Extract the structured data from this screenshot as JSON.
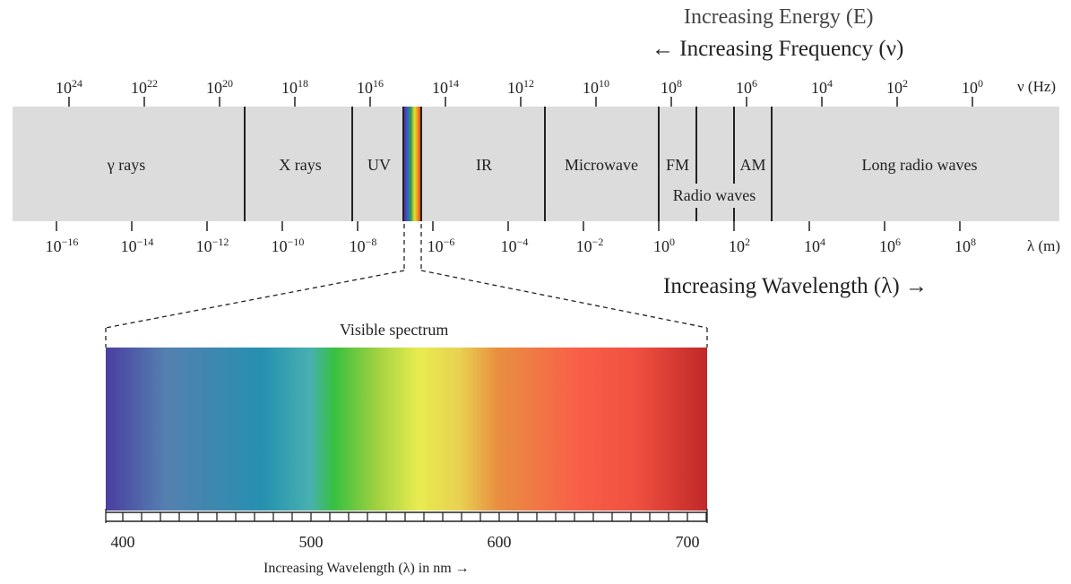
{
  "headings": {
    "energy": "Increasing Energy (E)",
    "frequency": "← Increasing Frequency (ν)",
    "wavelength": "Increasing Wavelength (λ) →",
    "visible_spectrum": "Visible spectrum",
    "nm_axis": "Increasing Wavelength (λ) in nm →"
  },
  "units": {
    "frequency": "ν (Hz)",
    "wavelength": "λ (m)"
  },
  "frequency_ticks": [
    {
      "base": "10",
      "exp": "24"
    },
    {
      "base": "10",
      "exp": "22"
    },
    {
      "base": "10",
      "exp": "20"
    },
    {
      "base": "10",
      "exp": "18"
    },
    {
      "base": "10",
      "exp": "16"
    },
    {
      "base": "10",
      "exp": "14"
    },
    {
      "base": "10",
      "exp": "12"
    },
    {
      "base": "10",
      "exp": "10"
    },
    {
      "base": "10",
      "exp": "8"
    },
    {
      "base": "10",
      "exp": "6"
    },
    {
      "base": "10",
      "exp": "4"
    },
    {
      "base": "10",
      "exp": "2"
    },
    {
      "base": "10",
      "exp": "0"
    }
  ],
  "wavelength_ticks": [
    {
      "base": "10",
      "exp": "−16"
    },
    {
      "base": "10",
      "exp": "−14"
    },
    {
      "base": "10",
      "exp": "−12"
    },
    {
      "base": "10",
      "exp": "−10"
    },
    {
      "base": "10",
      "exp": "−8"
    },
    {
      "base": "10",
      "exp": "−6"
    },
    {
      "base": "10",
      "exp": "−4"
    },
    {
      "base": "10",
      "exp": "−2"
    },
    {
      "base": "10",
      "exp": "0"
    },
    {
      "base": "10",
      "exp": "2"
    },
    {
      "base": "10",
      "exp": "4"
    },
    {
      "base": "10",
      "exp": "6"
    },
    {
      "base": "10",
      "exp": "8"
    }
  ],
  "regions": [
    {
      "id": "gamma",
      "label": "γ rays"
    },
    {
      "id": "xray",
      "label": "X rays"
    },
    {
      "id": "uv",
      "label": "UV"
    },
    {
      "id": "ir",
      "label": "IR"
    },
    {
      "id": "microwave",
      "label": "Microwave"
    },
    {
      "id": "fm",
      "label": "FM"
    },
    {
      "id": "radio",
      "label": "Radio waves"
    },
    {
      "id": "am",
      "label": "AM"
    },
    {
      "id": "long-radio",
      "label": "Long radio waves"
    }
  ],
  "nm_ticks": [
    "400",
    "500",
    "600",
    "700"
  ],
  "colors": {
    "band_fill": "#dcdcdc",
    "rainbow": [
      "#5a2ea0",
      "#2f62c8",
      "#2ea04c",
      "#e8e030",
      "#f09020",
      "#e02a1e"
    ],
    "visible_gradient": [
      "#4a3ea0",
      "#5580b0",
      "#2590b0",
      "#48b0b0",
      "#38c040",
      "#a0d040",
      "#e8ec50",
      "#e8d050",
      "#e89040",
      "#f86048",
      "#f05040",
      "#c02828"
    ]
  }
}
